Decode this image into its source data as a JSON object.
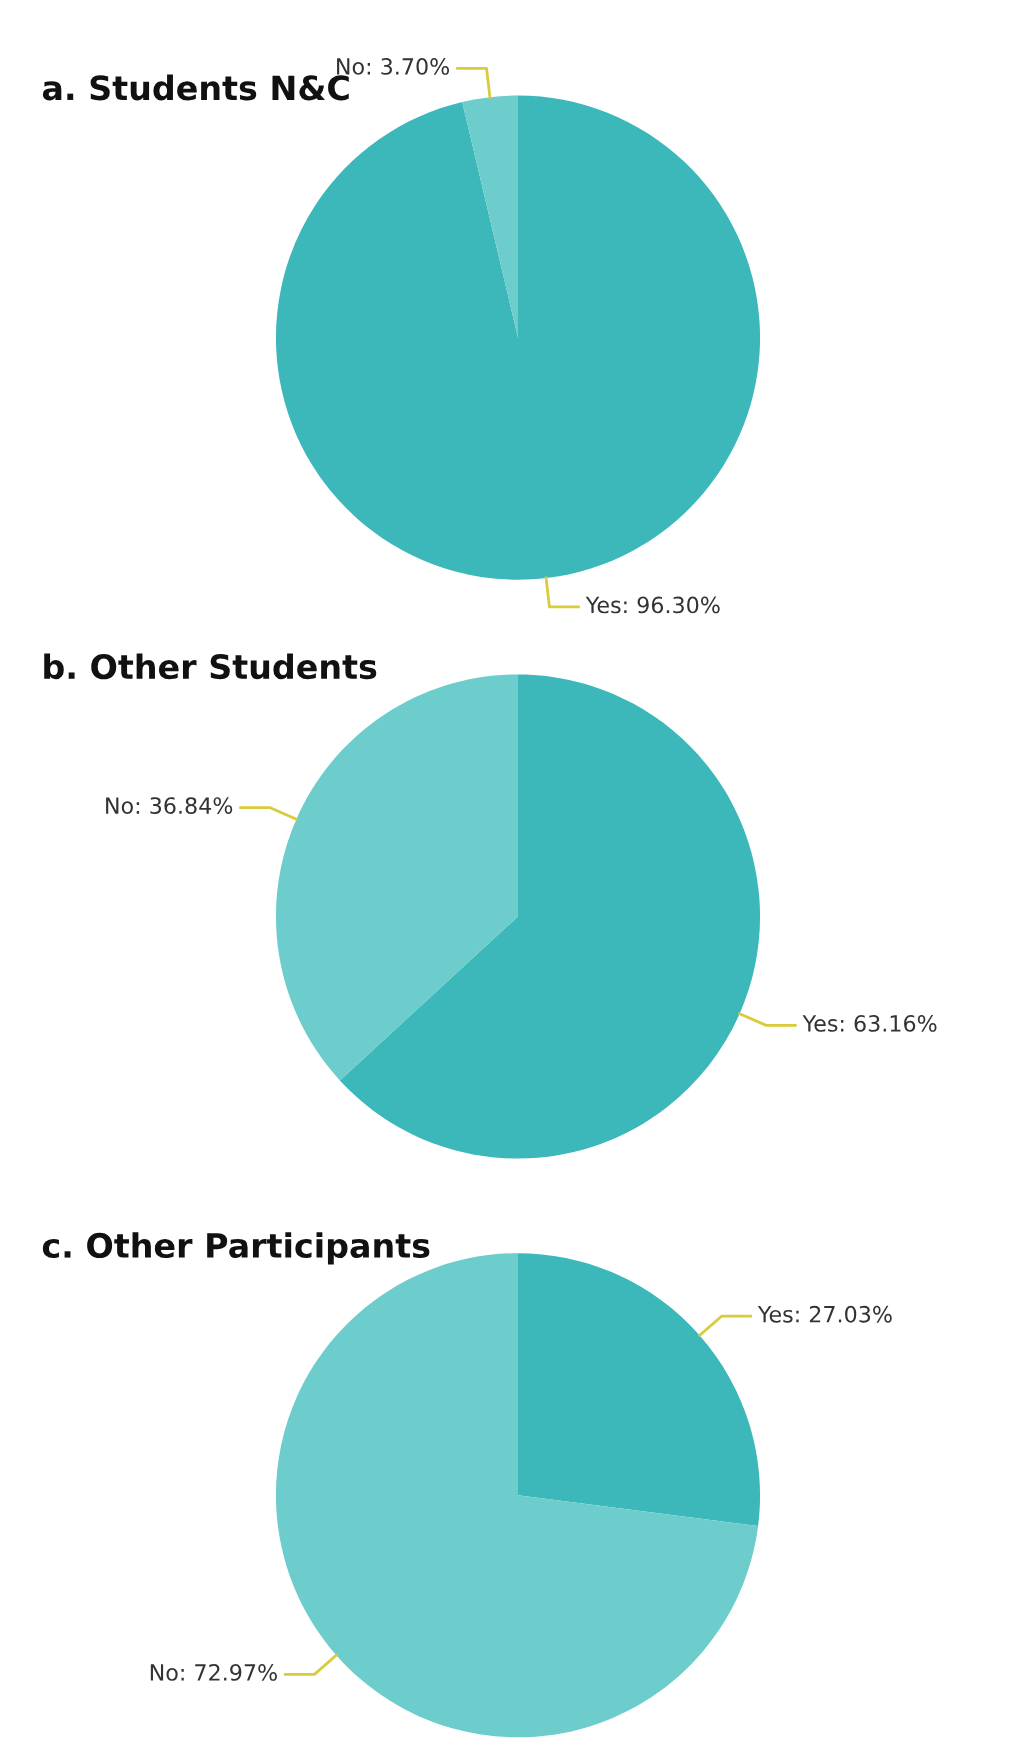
{
  "chart_data": [
    {
      "type": "pie",
      "title": "a. Students N&C",
      "categories": [
        "Yes",
        "No"
      ],
      "values": [
        96.3,
        3.7
      ],
      "value_labels": [
        "96.30%",
        "3.70%"
      ],
      "colors": [
        "#3cb7ba",
        "#6dcdcc"
      ]
    },
    {
      "type": "pie",
      "title": "b. Other Students",
      "categories": [
        "Yes",
        "No"
      ],
      "values": [
        63.16,
        36.84
      ],
      "value_labels": [
        "63.16%",
        "36.84%"
      ],
      "colors": [
        "#3cb7ba",
        "#6dcdcc"
      ]
    },
    {
      "type": "pie",
      "title": "c. Other Participants",
      "categories": [
        "Yes",
        "No"
      ],
      "values": [
        27.03,
        72.97
      ],
      "value_labels": [
        "27.03%",
        "72.97%"
      ],
      "colors": [
        "#3cb7ba",
        "#6dcdcc"
      ]
    }
  ]
}
